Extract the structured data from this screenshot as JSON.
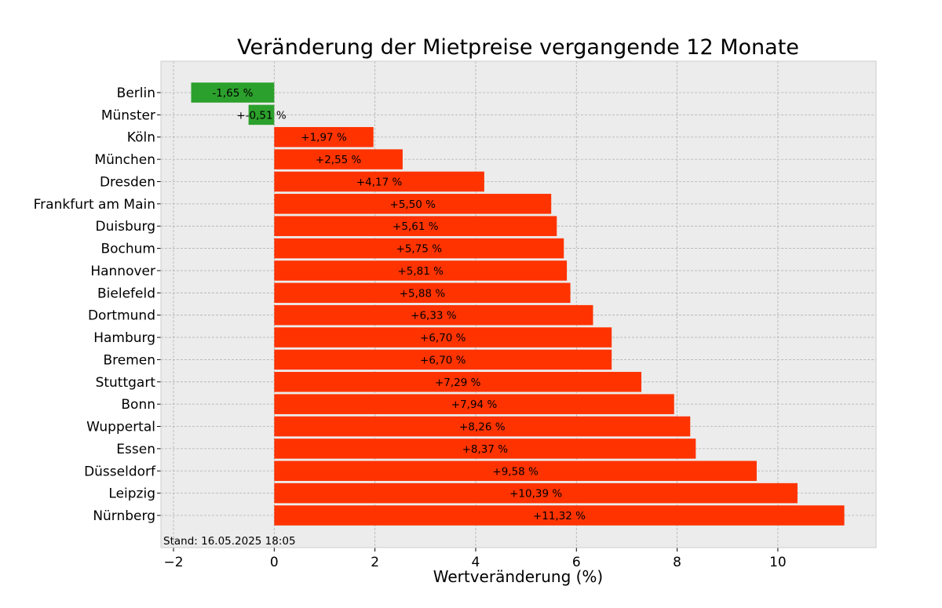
{
  "chart_data": {
    "type": "bar",
    "orientation": "horizontal",
    "title": "Veränderung der Mietpreise vergangende 12 Monate",
    "xlabel": "Wertveränderung (%)",
    "ylabel": "",
    "xlim": [
      -2.25,
      11.95
    ],
    "xticks": [
      -2,
      0,
      2,
      4,
      6,
      8,
      10
    ],
    "xtick_labels": [
      "−2",
      "0",
      "2",
      "4",
      "6",
      "8",
      "10"
    ],
    "grid": true,
    "categories": [
      "Berlin",
      "Münster",
      "Köln",
      "München",
      "Dresden",
      "Frankfurt am Main",
      "Duisburg",
      "Bochum",
      "Hannover",
      "Bielefeld",
      "Dortmund",
      "Hamburg",
      "Bremen",
      "Stuttgart",
      "Bonn",
      "Wuppertal",
      "Essen",
      "Düsseldorf",
      "Leipzig",
      "Nürnberg"
    ],
    "values": [
      -1.65,
      -0.51,
      1.97,
      2.55,
      4.17,
      5.5,
      5.61,
      5.75,
      5.81,
      5.88,
      6.33,
      6.7,
      6.7,
      7.29,
      7.94,
      8.26,
      8.37,
      9.58,
      10.39,
      11.32
    ],
    "value_labels": [
      "-1,65 %",
      "+-0,51 %",
      "+1,97 %",
      "+2,55 %",
      "+4,17 %",
      "+5,50 %",
      "+5,61 %",
      "+5,75 %",
      "+5,81 %",
      "+5,88 %",
      "+6,33 %",
      "+6,70 %",
      "+6,70 %",
      "+7,29 %",
      "+7,94 %",
      "+8,26 %",
      "+8,37 %",
      "+9,58 %",
      "+10,39 %",
      "+11,32 %"
    ],
    "colors": {
      "negative": "#2ca02c",
      "positive": "#ff3300",
      "background": "#ececec",
      "grid": "#b0b0b0"
    },
    "footnote": "Stand: 16.05.2025 18:05"
  }
}
